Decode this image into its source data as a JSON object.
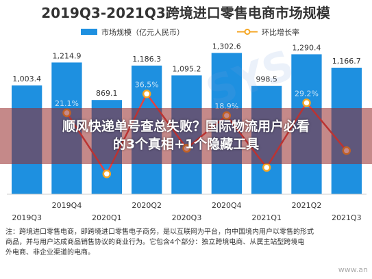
{
  "banner": {
    "line1": "顺风快递单号查总失败？国际物流用户必看",
    "line2": "的3个真相+1个隐藏工具"
  },
  "notes": {
    "line1": "注：跨境进口零售电商，即跨境进口零售电子商务，是以互联网为平台，向中国境内用户以零售的形式",
    "line2": "商品，并与用户达成商品销售协议的商业行为。它包含4个部分：独立跨境电商、从属主站型跨境电",
    "line3": "外电商、非企业渠道的电商。"
  },
  "watermark_text": "www.an",
  "bg_watermark_text": "SYS",
  "colors": {
    "bar": "#1E90E0",
    "line": "#E8403F",
    "marker_fill": "#FFFFFF",
    "marker_stroke": "#F5A623",
    "title": "#333333"
  },
  "chart_data": {
    "type": "bar",
    "title": "2019Q3-2021Q3跨境进口零售电商市场规模",
    "legend": {
      "placement": "top",
      "bar_label": "市场规模（亿元人民币）",
      "line_label": "环比增长率"
    },
    "categories": [
      "2019Q3",
      "2019Q4",
      "2020Q1",
      "2020Q2",
      "2020Q3",
      "2020Q4",
      "2021Q1",
      "2021Q2",
      "2021Q3"
    ],
    "series": [
      {
        "name": "市场规模（亿元人民币）",
        "type": "bar",
        "values": [
          1003.4,
          1214.9,
          869.1,
          1186.3,
          1095.2,
          1302.6,
          998.5,
          1290.4,
          1166.7
        ],
        "labels": [
          "1,003.4",
          "1,214.9",
          "869.1",
          "1,186.3",
          "1,095.2",
          "1,302.6",
          "998.5",
          "1,290.4",
          "1,166.7"
        ]
      },
      {
        "name": "环比增长率",
        "type": "line",
        "values": [
          null,
          21.1,
          -28.5,
          36.5,
          -7.7,
          18.9,
          -23.3,
          29.2,
          -9.6
        ],
        "labels": [
          "",
          "21.1%",
          "",
          "36.5%",
          "",
          "18.9%",
          "",
          "29.2%",
          ""
        ]
      }
    ],
    "ylim": [
      0,
      1400
    ],
    "y2lim": [
      -40,
      60
    ],
    "grid": false
  }
}
